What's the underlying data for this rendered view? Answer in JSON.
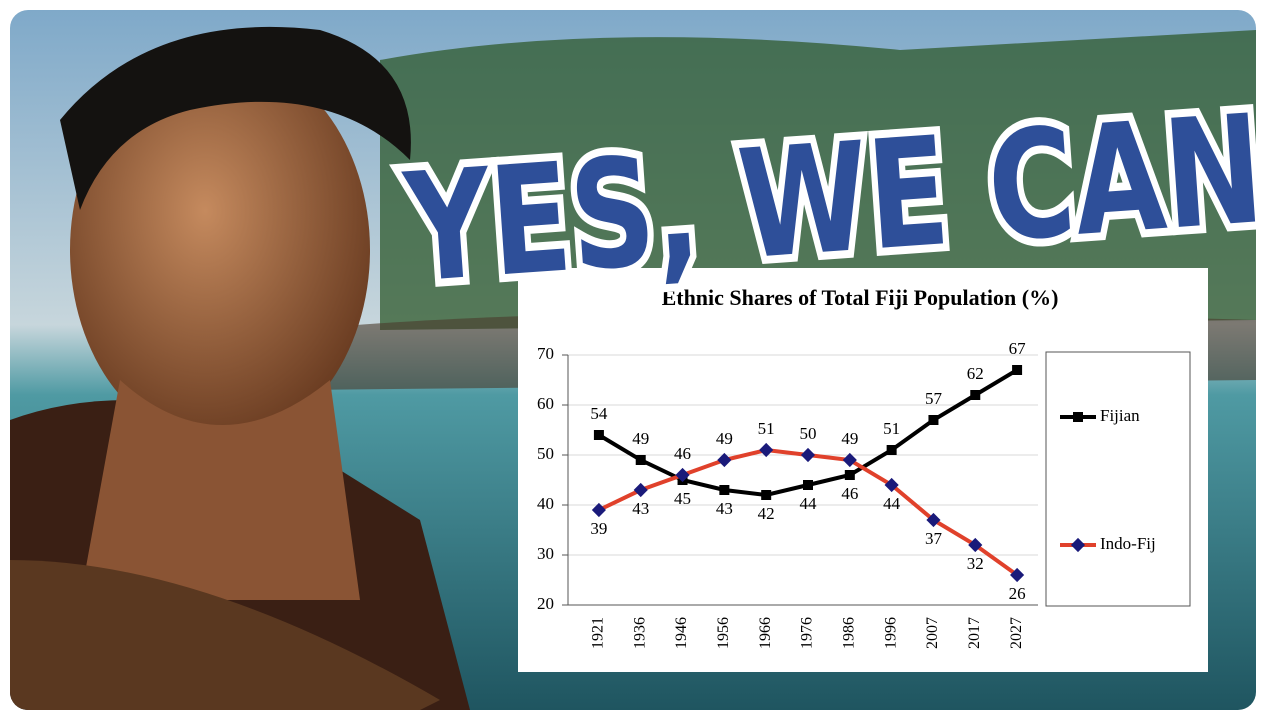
{
  "headline": "YES, WE CAN",
  "chart_data": {
    "type": "line",
    "title": "Ethnic Shares of Total Fiji Population (%)",
    "categories": [
      "1921",
      "1936",
      "1946",
      "1956",
      "1966",
      "1976",
      "1986",
      "1996",
      "2007",
      "2017",
      "2027"
    ],
    "series": [
      {
        "name": "Fijian",
        "color": "#000000",
        "marker_color": "#000000",
        "values": [
          54,
          49,
          45,
          43,
          42,
          44,
          46,
          51,
          57,
          62,
          67
        ]
      },
      {
        "name": "Indo-Fij",
        "color": "#e0412b",
        "marker_color": "#1a1a7a",
        "values": [
          39,
          43,
          46,
          49,
          51,
          50,
          49,
          44,
          37,
          32,
          26
        ]
      }
    ],
    "ylim": [
      20,
      70
    ],
    "yticks": [
      20,
      30,
      40,
      50,
      60,
      70
    ],
    "grid": true,
    "legend": "right"
  }
}
